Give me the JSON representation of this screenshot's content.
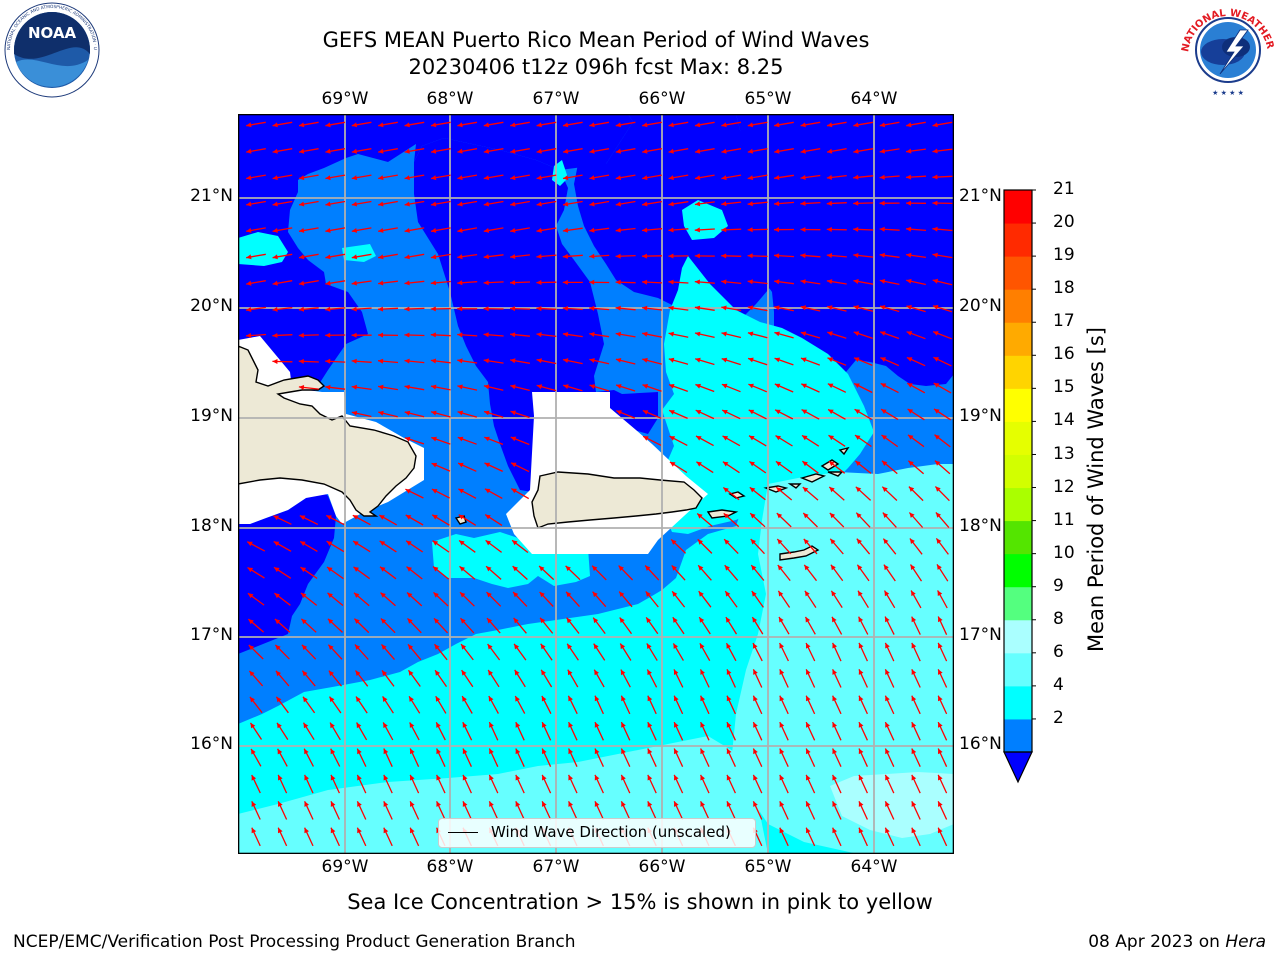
{
  "header": {
    "title_line1": "GEFS MEAN Puerto Rico Mean Period of Wind Waves",
    "title_line2": "20230406 t12z 096h fcst   Max: 8.25"
  },
  "logos": {
    "noaa_text": "NOAA",
    "noaa_ring_text": "NATIONAL OCEANIC AND ATMOSPHERIC ADMINISTRATION · U.S. DEPARTMENT OF COMMERCE",
    "nws_ring_text": "NATIONAL WEATHER SERVICE"
  },
  "map": {
    "lon_labels": [
      "69°W",
      "68°W",
      "67°W",
      "66°W",
      "65°W",
      "64°W"
    ],
    "lat_labels": [
      "21°N",
      "20°N",
      "19°N",
      "18°N",
      "17°N",
      "16°N"
    ],
    "legend_label": "Wind Wave Direction (unscaled)",
    "colors": {
      "land": "#ede9d6",
      "grid": "#b0b0b0",
      "arrow": "#ff0000",
      "band_2_4": "#0000ff",
      "band_4_6": "#007fff",
      "band_6_8": "#00ffff",
      "band_8_9": "#66ffff",
      "band_9_10": "#aaffff"
    }
  },
  "colorbar": {
    "label": "Mean Period of Wind Waves [s]",
    "ticks": [
      "21",
      "20",
      "19",
      "18",
      "17",
      "16",
      "15",
      "14",
      "13",
      "12",
      "11",
      "10",
      "9",
      "8",
      "6",
      "4",
      "2"
    ],
    "colors_bottom_to_top": [
      "#007fff",
      "#00ffff",
      "#66ffff",
      "#aaffff",
      "#54ff7f",
      "#00ff00",
      "#54e500",
      "#aaff00",
      "#d2ff00",
      "#e5ff00",
      "#ffff00",
      "#ffd400",
      "#ffaa00",
      "#ff7f00",
      "#ff5500",
      "#ff2a00",
      "#ff0000"
    ],
    "under_color": "#0000ff"
  },
  "footer": {
    "sea_ice_note": "Sea Ice Concentration > 15% is shown in pink to yellow",
    "left": "NCEP/EMC/Verification Post Processing Product Generation Branch",
    "right_prefix": "08 Apr 2023 on ",
    "right_machine": "Hera"
  }
}
